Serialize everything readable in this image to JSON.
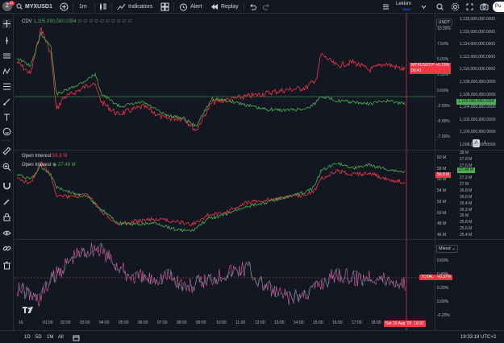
{
  "topbar": {
    "avatar_letter": "Z",
    "notif": "11",
    "symbol": "MYXUSD1",
    "interval": "1m",
    "indicators": "Indicators",
    "alert": "Alert",
    "replay": "Replay",
    "user": "Lekkim",
    "user_status": "Save",
    "publish": "Pu"
  },
  "cdv": {
    "label": "CDV",
    "value": "1,105,090,580.0394",
    "ghosts": "∅ ∅ ∅ ∅ ∅ ∅ ∅ ∅ ∅ ∅",
    "currency": "USDT",
    "pct_ticks": [
      "10.00%",
      "7.50%",
      "5.00%",
      "2.50%",
      "0.00%",
      "-2.50%",
      "-5.00%",
      "-7.50%"
    ],
    "abs_ticks": [
      "1,118,000,000.0000",
      "1,116,000,000.0000",
      "1,114,000,000.0000",
      "1,112,000,000.0000",
      "1,110,000,000.0000",
      "1,108,000,000.0000",
      "1,106,000,000.0000",
      "1,104,000,000.0000",
      "1,102,000,000.0000",
      "1,100,000,000.0000",
      "1,098,000,000.0000"
    ],
    "price_tag": "MYXUSDT.P",
    "price_pct": "+6.73%",
    "price_time": "00:41",
    "green_tag": "1,105,090,580.0394",
    "btn_a": "A",
    "btn_l": "L"
  },
  "oi": {
    "label1": "Open Interest",
    "value1": "56.8 M",
    "label2": "Open Interest",
    "value2": "27.48 M",
    "left_ticks": [
      "60 M",
      "58 M",
      "56 M",
      "54 M",
      "52 M",
      "50 M",
      "48 M",
      "46 M"
    ],
    "right_ticks": [
      "28 M",
      "27.8 M",
      "27.6 M",
      "27.4 M",
      "27.2 M",
      "27 M",
      "26.8 M",
      "26.6 M",
      "26.4 M",
      "26.2 M",
      "26 M",
      "25.8 M",
      "25.6 M",
      "25.4 M"
    ],
    "red_tag": "56.8 M",
    "green_tag": "27.48 M"
  },
  "total": {
    "mode": "Mixed",
    "ticks": [
      "0.60%",
      "0.40%",
      "0.20%",
      "0.00%",
      "-0.20%"
    ],
    "tag_label": "TOTAL",
    "tag_value": "+0.37%"
  },
  "time_axis": {
    "ticks": [
      "16",
      "01:00",
      "02:00",
      "03:00",
      "04:00",
      "05:00",
      "06:00",
      "07:00",
      "08:00",
      "09:00",
      "10:00",
      "11:00",
      "12:00",
      "13:00",
      "14:00",
      "15:00",
      "16:00",
      "17:00",
      "18:00"
    ],
    "cursor": "Sat 16 Aug '25",
    "cursor_time": "19:31"
  },
  "bottombar": {
    "ranges": [
      "1D",
      "5D",
      "1M",
      "All"
    ],
    "clock": "19:33:19 UTC+2"
  },
  "colors": {
    "red": "#f23645",
    "green": "#4caf50",
    "pink": "#e060a0",
    "teal": "#26a69a",
    "bg": "#131722"
  }
}
